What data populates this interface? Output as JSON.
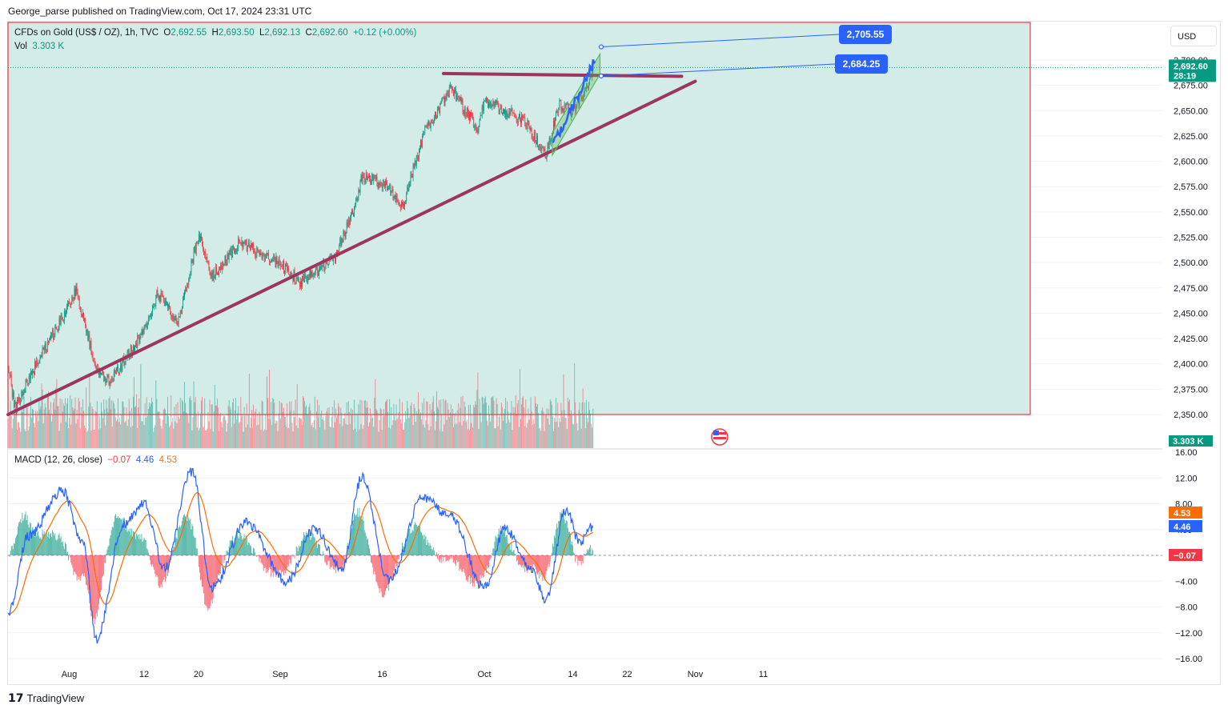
{
  "header": {
    "published": "George_parse published on TradingView.com, Oct 17, 2024 23:31 UTC"
  },
  "legend": {
    "symbol": "CFDs on Gold (US$ / OZ), 1h, TVC",
    "open_label": "O",
    "open": "2,692.55",
    "high_label": "H",
    "high": "2,693.50",
    "low_label": "L",
    "low": "2,692.13",
    "close_label": "C",
    "close": "2,692.60",
    "change": "+0.12 (+0.00%)",
    "vol_label": "Vol",
    "vol": "3.303 K"
  },
  "macd_legend": {
    "label": "MACD (12, 26, close)",
    "hist": "−0.07",
    "macd": "4.46",
    "signal": "4.53"
  },
  "currency_button": "USD",
  "footer": {
    "brand": "TradingView"
  },
  "colors": {
    "up": "#089981",
    "down": "#f23645",
    "area_fill": "#d4ece8",
    "trendline": "#9c365f",
    "channel": "#5cb85c",
    "macd": "#2962ff",
    "signal": "#ff6d00",
    "price_badge": "#089981",
    "callout": "#2962ff"
  },
  "chart_data": [
    {
      "type": "candlestick",
      "title": "CFDs on Gold (US$ / OZ), 1h, TVC",
      "y_ticks": [
        "2,700.00",
        "2,675.00",
        "2,650.00",
        "2,625.00",
        "2,600.00",
        "2,575.00",
        "2,550.00",
        "2,525.00",
        "2,500.00",
        "2,475.00",
        "2,450.00",
        "2,425.00",
        "2,400.00",
        "2,375.00",
        "2,350.00"
      ],
      "ylim": [
        2340,
        2728
      ],
      "x_ticks": [
        "Aug",
        "12",
        "20",
        "Sep",
        "16",
        "Oct",
        "14",
        "22",
        "Nov",
        "11"
      ],
      "last_price": "2,692.60",
      "countdown": "28:19",
      "volume_badge": "3.303 K",
      "price_path_anchors": [
        {
          "t": "Jul 23",
          "price": 2400
        },
        {
          "t": "Jul 24",
          "price": 2355
        },
        {
          "t": "Jul 26",
          "price": 2385
        },
        {
          "t": "Jul 31",
          "price": 2445
        },
        {
          "t": "Aug 2",
          "price": 2472
        },
        {
          "t": "Aug 5",
          "price": 2395
        },
        {
          "t": "Aug 7",
          "price": 2382
        },
        {
          "t": "Aug 12",
          "price": 2432
        },
        {
          "t": "Aug 14",
          "price": 2470
        },
        {
          "t": "Aug 17",
          "price": 2440
        },
        {
          "t": "Aug 20",
          "price": 2528
        },
        {
          "t": "Aug 22",
          "price": 2485
        },
        {
          "t": "Aug 26",
          "price": 2520
        },
        {
          "t": "Sep 1",
          "price": 2498
        },
        {
          "t": "Sep 4",
          "price": 2480
        },
        {
          "t": "Sep 9",
          "price": 2505
        },
        {
          "t": "Sep 12",
          "price": 2555
        },
        {
          "t": "Sep 13",
          "price": 2585
        },
        {
          "t": "Sep 17",
          "price": 2575
        },
        {
          "t": "Sep 19",
          "price": 2555
        },
        {
          "t": "Sep 22",
          "price": 2625
        },
        {
          "t": "Sep 26",
          "price": 2672
        },
        {
          "t": "Sep 30",
          "price": 2632
        },
        {
          "t": "Oct 1",
          "price": 2660
        },
        {
          "t": "Oct 4",
          "price": 2650
        },
        {
          "t": "Oct 7",
          "price": 2640
        },
        {
          "t": "Oct 10",
          "price": 2605
        },
        {
          "t": "Oct 12",
          "price": 2655
        },
        {
          "t": "Oct 14",
          "price": 2648
        },
        {
          "t": "Oct 16",
          "price": 2672
        },
        {
          "t": "Oct 17",
          "price": 2692.6
        }
      ],
      "annotations": [
        {
          "type": "horizontal_resistance",
          "price": 2684.25
        },
        {
          "type": "rising_trendline",
          "from": {
            "t": "Jul 23",
            "price": 2350
          },
          "to": {
            "t": "Nov 1",
            "price": 2679
          }
        },
        {
          "type": "ascending_channel",
          "from_t": "Oct 11",
          "to_t": "Oct 18",
          "lower_start": 2606,
          "upper_start": 2628,
          "lower_end": 2686,
          "upper_end": 2706
        },
        {
          "type": "target_callout",
          "label": "2,705.55",
          "price": 2705.55
        },
        {
          "type": "target_callout",
          "label": "2,684.25",
          "price": 2684.25
        },
        {
          "type": "highlight_box",
          "fill": "area",
          "price_bottom": 2350
        }
      ]
    },
    {
      "type": "bar",
      "title": "Vol",
      "description": "hourly volume histogram (bars colored by candle direction)",
      "current": "3.303 K"
    },
    {
      "type": "line",
      "title": "MACD (12, 26, close)",
      "y_ticks": [
        "16.00",
        "12.00",
        "8.00",
        "4.00",
        "0.00",
        "−4.00",
        "−8.00",
        "−12.00",
        "−16.00"
      ],
      "ylim": [
        -17.5,
        17
      ],
      "last_values": {
        "histogram": "−0.07",
        "macd": "4.46",
        "signal": "4.53"
      },
      "badges": [
        "4.53",
        "4.46",
        "−0.07"
      ],
      "macd_path_anchors": [
        {
          "t": "Jul 23",
          "value": -9
        },
        {
          "t": "Jul 26",
          "value": 3
        },
        {
          "t": "Jul 31",
          "value": 10
        },
        {
          "t": "Aug 3",
          "value": 2
        },
        {
          "t": "Aug 5",
          "value": -13
        },
        {
          "t": "Aug 9",
          "value": 5
        },
        {
          "t": "Aug 12",
          "value": 8
        },
        {
          "t": "Aug 15",
          "value": -2
        },
        {
          "t": "Aug 19",
          "value": 13
        },
        {
          "t": "Aug 22",
          "value": -5
        },
        {
          "t": "Aug 27",
          "value": 5
        },
        {
          "t": "Sep 2",
          "value": -4
        },
        {
          "t": "Sep 6",
          "value": 4
        },
        {
          "t": "Sep 10",
          "value": -2
        },
        {
          "t": "Sep 13",
          "value": 12
        },
        {
          "t": "Sep 17",
          "value": -4
        },
        {
          "t": "Sep 22",
          "value": 9
        },
        {
          "t": "Sep 26",
          "value": 6
        },
        {
          "t": "Oct 1",
          "value": -5
        },
        {
          "t": "Oct 4",
          "value": 4
        },
        {
          "t": "Oct 8",
          "value": -2
        },
        {
          "t": "Oct 10",
          "value": -7
        },
        {
          "t": "Oct 13",
          "value": 7
        },
        {
          "t": "Oct 15",
          "value": 2
        },
        {
          "t": "Oct 17",
          "value": 4.46
        }
      ]
    }
  ]
}
